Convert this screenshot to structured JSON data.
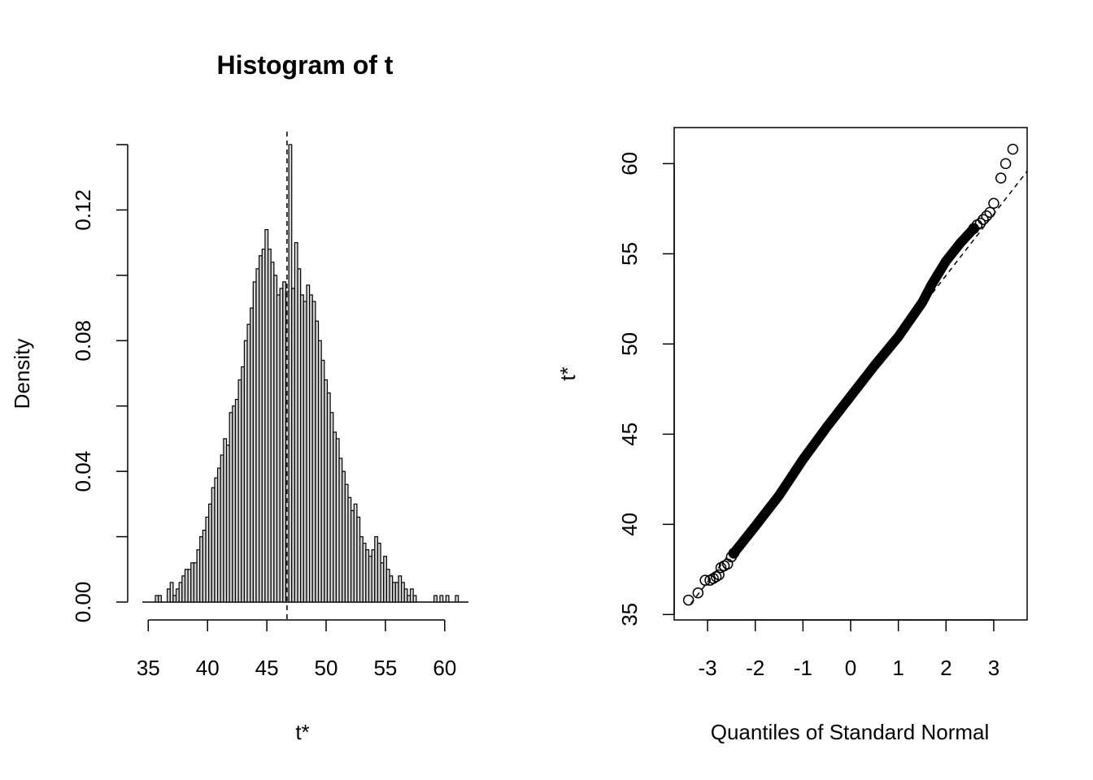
{
  "chart_data": [
    {
      "type": "bar",
      "title": "Histogram of t",
      "xlabel": "t*",
      "ylabel": "Density",
      "xlim": [
        34.5,
        62
      ],
      "ylim": [
        0,
        0.14
      ],
      "x_ticks": [
        "35",
        "40",
        "45",
        "50",
        "55",
        "60"
      ],
      "y_ticks": [
        "0.00",
        "0.04",
        "0.08",
        "0.12"
      ],
      "bin_start": 35.6,
      "bin_width": 0.25,
      "densities": [
        0.002,
        0.002,
        0,
        0,
        0.004,
        0.006,
        0.002,
        0.004,
        0.006,
        0.008,
        0.01,
        0.01,
        0.012,
        0.012,
        0.016,
        0.02,
        0.022,
        0.026,
        0.03,
        0.035,
        0.038,
        0.041,
        0.045,
        0.05,
        0.048,
        0.058,
        0.06,
        0.062,
        0.068,
        0.072,
        0.08,
        0.085,
        0.09,
        0.098,
        0.102,
        0.106,
        0.108,
        0.114,
        0.108,
        0.104,
        0.1,
        0.094,
        0.096,
        0.098,
        0.095,
        0.14,
        0.096,
        0.11,
        0.102,
        0.094,
        0.092,
        0.097,
        0.094,
        0.092,
        0.086,
        0.08,
        0.074,
        0.068,
        0.064,
        0.058,
        0.052,
        0.05,
        0.044,
        0.04,
        0.036,
        0.032,
        0.028,
        0.03,
        0.026,
        0.02,
        0.018,
        0.016,
        0.014,
        0.016,
        0.02,
        0.018,
        0.012,
        0.014,
        0.01,
        0.008,
        0.006,
        0.006,
        0.008,
        0.006,
        0.004,
        0.002,
        0.004,
        0.002
      ],
      "extra_bars": [
        [
          59.1,
          0.002
        ],
        [
          59.6,
          0.002
        ],
        [
          60.1,
          0.002
        ],
        [
          60.9,
          0.002
        ]
      ],
      "vline": 46.7,
      "grid": false
    },
    {
      "type": "scatter",
      "title": "",
      "xlabel": "Quantiles of Standard Normal",
      "ylabel": "t*",
      "xlim": [
        -3.7,
        3.7
      ],
      "ylim": [
        34.7,
        62
      ],
      "x_ticks": [
        "-3",
        "-2",
        "-1",
        "0",
        "1",
        "2",
        "3"
      ],
      "y_ticks": [
        "35",
        "40",
        "45",
        "50",
        "55",
        "60"
      ],
      "reference_line": {
        "intercept": 47.0,
        "slope": 3.4
      },
      "points": [
        [
          -3.4,
          35.8
        ],
        [
          -3.2,
          36.2
        ],
        [
          -3.05,
          36.9
        ],
        [
          -2.95,
          36.9
        ],
        [
          -2.88,
          37.0
        ],
        [
          -2.82,
          37.1
        ],
        [
          -2.76,
          37.2
        ],
        [
          -2.72,
          37.6
        ],
        [
          -2.65,
          37.7
        ],
        [
          -2.58,
          37.8
        ],
        [
          -2.5,
          38.2
        ],
        [
          -2.45,
          38.4
        ],
        [
          3.4,
          60.8
        ],
        [
          3.25,
          60.0
        ],
        [
          3.15,
          59.2
        ],
        [
          3.0,
          57.8
        ],
        [
          2.92,
          57.3
        ],
        [
          2.85,
          57.1
        ],
        [
          2.78,
          56.9
        ],
        [
          2.72,
          56.7
        ],
        [
          2.65,
          56.6
        ],
        [
          2.58,
          56.4
        ]
      ],
      "grid": false,
      "legend": "none"
    }
  ]
}
